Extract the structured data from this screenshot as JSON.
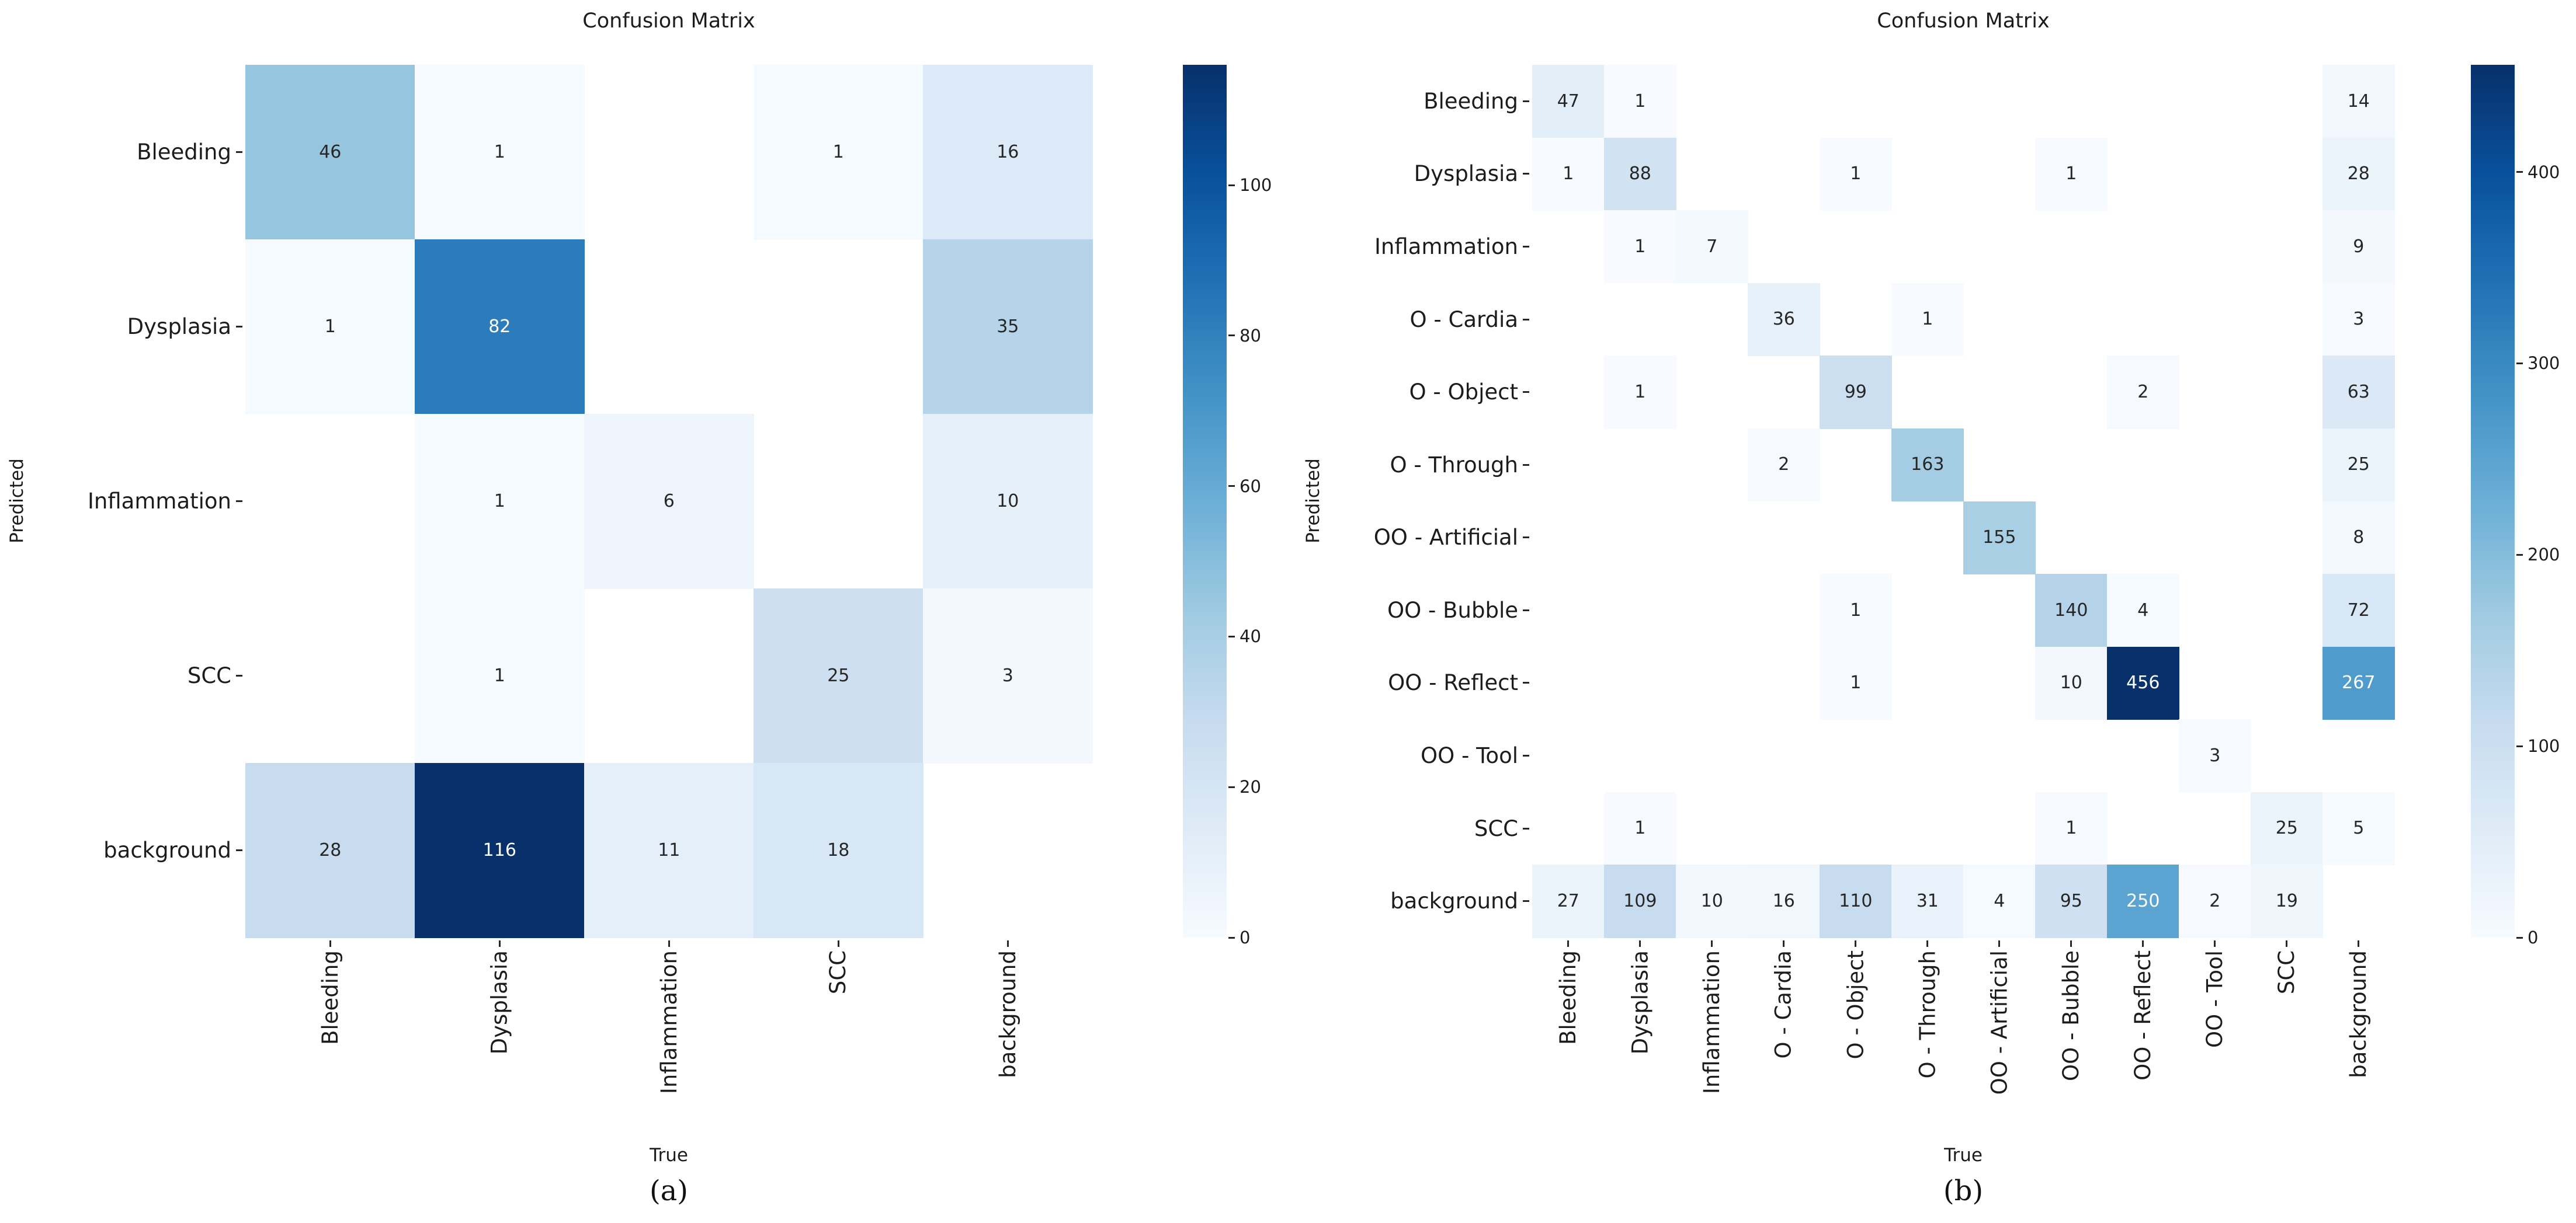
{
  "page": {
    "background": "#ffffff"
  },
  "panels": [
    {
      "caption": "(a)"
    },
    {
      "caption": "(b)"
    }
  ],
  "chart_data": [
    {
      "type": "heatmap",
      "title": "Confusion Matrix",
      "xlabel": "True",
      "ylabel": "Predicted",
      "colormap": "Blues",
      "grid": false,
      "legend_position": "right-colorbar",
      "categories": [
        "Bleeding",
        "Dysplasia",
        "Inflammation",
        "SCC",
        "background"
      ],
      "matrix": [
        [
          46,
          1,
          null,
          1,
          16
        ],
        [
          1,
          82,
          null,
          null,
          35
        ],
        [
          null,
          1,
          6,
          null,
          10
        ],
        [
          null,
          1,
          null,
          25,
          3
        ],
        [
          28,
          116,
          11,
          18,
          null
        ]
      ],
      "vmin": 0,
      "vmax": 116,
      "colorbar_ticks": [
        0,
        20,
        40,
        60,
        80,
        100
      ]
    },
    {
      "type": "heatmap",
      "title": "Confusion Matrix",
      "xlabel": "True",
      "ylabel": "Predicted",
      "colormap": "Blues",
      "grid": false,
      "legend_position": "right-colorbar",
      "categories": [
        "Bleeding",
        "Dysplasia",
        "Inflammation",
        "O - Cardia",
        "O - Object",
        "O - Through",
        "OO - Artificial",
        "OO - Bubble",
        "OO - Reflect",
        "OO - Tool",
        "SCC",
        "background"
      ],
      "matrix": [
        [
          47,
          1,
          null,
          null,
          null,
          null,
          null,
          null,
          null,
          null,
          null,
          14
        ],
        [
          1,
          88,
          null,
          null,
          1,
          null,
          null,
          1,
          null,
          null,
          null,
          28
        ],
        [
          null,
          1,
          7,
          null,
          null,
          null,
          null,
          null,
          null,
          null,
          null,
          9
        ],
        [
          null,
          null,
          null,
          36,
          null,
          1,
          null,
          null,
          null,
          null,
          null,
          3
        ],
        [
          null,
          1,
          null,
          null,
          99,
          null,
          null,
          null,
          2,
          null,
          null,
          63
        ],
        [
          null,
          null,
          null,
          2,
          null,
          163,
          null,
          null,
          null,
          null,
          null,
          25
        ],
        [
          null,
          null,
          null,
          null,
          null,
          null,
          155,
          null,
          null,
          null,
          null,
          8
        ],
        [
          null,
          null,
          null,
          null,
          1,
          null,
          null,
          140,
          4,
          null,
          null,
          72
        ],
        [
          null,
          null,
          null,
          null,
          1,
          null,
          null,
          10,
          456,
          null,
          null,
          267
        ],
        [
          null,
          null,
          null,
          null,
          null,
          null,
          null,
          null,
          null,
          3,
          null,
          null
        ],
        [
          null,
          1,
          null,
          null,
          null,
          null,
          null,
          1,
          null,
          null,
          25,
          5
        ],
        [
          27,
          109,
          10,
          16,
          110,
          31,
          4,
          95,
          250,
          2,
          19,
          null
        ]
      ],
      "vmin": 0,
      "vmax": 456,
      "colorbar_ticks": [
        0,
        100,
        200,
        300,
        400
      ]
    }
  ],
  "colors": {
    "colormap_low": "#f7fbff",
    "colormap_high": "#08306b",
    "annotation_dark": "#262626",
    "annotation_light": "#ffffff",
    "axis_text": "#1c1c1c"
  }
}
